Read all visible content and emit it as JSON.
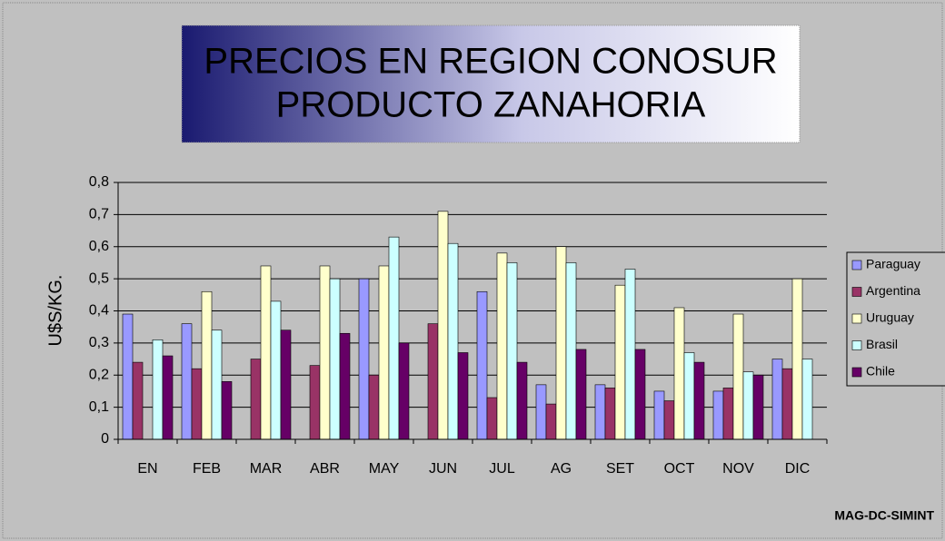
{
  "chart_data": {
    "type": "bar",
    "title": [
      "PRECIOS EN REGION CONOSUR",
      "PRODUCTO ZANAHORIA"
    ],
    "ylabel": "U$S/KG.",
    "source": "MAG-DC-SIMINT",
    "categories": [
      "EN",
      "FEB",
      "MAR",
      "ABR",
      "MAY",
      "JUN",
      "JUL",
      "AG",
      "SET",
      "OCT",
      "NOV",
      "DIC"
    ],
    "series": [
      {
        "name": "Paraguay",
        "color": "#9999ff",
        "values": [
          0.39,
          0.36,
          null,
          null,
          0.5,
          null,
          0.46,
          0.17,
          0.17,
          0.15,
          0.15,
          0.25
        ]
      },
      {
        "name": "Argentina",
        "color": "#993366",
        "values": [
          0.24,
          0.22,
          0.25,
          0.23,
          0.2,
          0.36,
          0.13,
          0.11,
          0.16,
          0.12,
          0.16,
          0.22
        ]
      },
      {
        "name": "Uruguay",
        "color": "#ffffcc",
        "values": [
          null,
          0.46,
          0.54,
          0.54,
          0.54,
          0.71,
          0.58,
          0.6,
          0.48,
          0.41,
          0.39,
          0.5
        ]
      },
      {
        "name": "Brasil",
        "color": "#ccffff",
        "values": [
          0.31,
          0.34,
          0.43,
          0.5,
          0.63,
          0.61,
          0.55,
          0.55,
          0.53,
          0.27,
          0.21,
          0.25
        ]
      },
      {
        "name": "Chile",
        "color": "#660066",
        "values": [
          0.26,
          0.18,
          0.34,
          0.33,
          0.3,
          0.27,
          0.24,
          0.28,
          0.28,
          0.24,
          0.2,
          null
        ]
      }
    ],
    "ylim": [
      0,
      0.8
    ],
    "yticks": [
      0,
      {
        "value": 0.1,
        "label": "0,1"
      },
      {
        "value": 0.2,
        "label": "0,2"
      },
      {
        "value": 0.3,
        "label": "0,3"
      },
      {
        "value": 0.4,
        "label": "0,4"
      },
      {
        "value": 0.5,
        "label": "0,5"
      },
      {
        "value": 0.6,
        "label": "0,6"
      },
      {
        "value": 0.7,
        "label": "0,7"
      },
      {
        "value": 0.8,
        "label": "0,8"
      }
    ],
    "grid": true,
    "legend": "right"
  }
}
